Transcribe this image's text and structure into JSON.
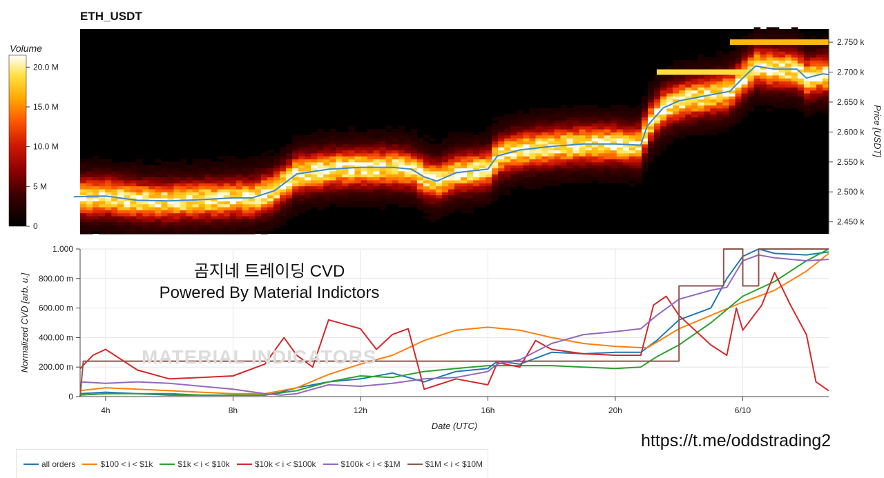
{
  "title": "ETH_USDT",
  "colorbar": {
    "label": "Volume",
    "ticks": [
      "20.0 M",
      "15.0 M",
      "10.0 M",
      "5 M",
      "0"
    ],
    "tick_values": [
      20,
      15,
      10,
      5,
      0
    ],
    "max": 21.5,
    "colormap": [
      "#000000",
      "#3a0000",
      "#8b0000",
      "#d11a00",
      "#ff5a00",
      "#ffaa00",
      "#ffe040",
      "#ffffff"
    ]
  },
  "heatmap": {
    "ylabel": "Price [USDT]",
    "yticks": [
      "2.750 k",
      "2.700 k",
      "2.650 k",
      "2.600 k",
      "2.550 k",
      "2.500 k",
      "2.450 k"
    ],
    "ytick_values": [
      2750,
      2700,
      2650,
      2600,
      2550,
      2500,
      2450
    ],
    "ylim": [
      2430,
      2772
    ],
    "price_line_color": "#3d8bc8",
    "price_path": [
      [
        3.0,
        2492
      ],
      [
        4.0,
        2493
      ],
      [
        5.0,
        2486
      ],
      [
        6.0,
        2485
      ],
      [
        7.0,
        2487
      ],
      [
        8.0,
        2490
      ],
      [
        8.6,
        2490
      ],
      [
        9.3,
        2502
      ],
      [
        10.0,
        2530
      ],
      [
        11.0,
        2538
      ],
      [
        12.0,
        2541
      ],
      [
        13.0,
        2541
      ],
      [
        13.6,
        2538
      ],
      [
        14.0,
        2525
      ],
      [
        14.4,
        2518
      ],
      [
        15.0,
        2532
      ],
      [
        16.0,
        2538
      ],
      [
        16.3,
        2560
      ],
      [
        17.0,
        2570
      ],
      [
        18.0,
        2576
      ],
      [
        19.0,
        2580
      ],
      [
        20.0,
        2580
      ],
      [
        20.8,
        2578
      ],
      [
        21.0,
        2610
      ],
      [
        21.5,
        2640
      ],
      [
        22.0,
        2652
      ],
      [
        23.0,
        2662
      ],
      [
        23.6,
        2668
      ],
      [
        24.0,
        2690
      ],
      [
        24.4,
        2710
      ],
      [
        25.0,
        2705
      ],
      [
        25.7,
        2705
      ],
      [
        26.0,
        2690
      ],
      [
        26.5,
        2697
      ],
      [
        26.7,
        2696
      ]
    ],
    "bright_bands": [
      {
        "price": 2700,
        "t_start": 21.3,
        "t_end": 24.3,
        "level": 0.85
      },
      {
        "price": 2750,
        "t_start": 23.6,
        "t_end": 26.7,
        "level": 0.75
      }
    ]
  },
  "watermark": "MATERIAL INDICATORS",
  "overlay": {
    "line1": "곰지네 트레이딩 CVD",
    "line2": "Powered By Material Indictors"
  },
  "url": "https://t.me/oddstrading2",
  "chart_data": {
    "type": "line",
    "xlabel": "Date (UTC)",
    "ylabel": "Normalized CVD [arb. u.]",
    "x_unit": "hours from 00:00 UTC (day 1); 24 = 6/10 00:00",
    "xlim": [
      3.2,
      26.7
    ],
    "ylim": [
      0,
      1.0
    ],
    "x_ticks": [
      {
        "label": "4h",
        "value": 4
      },
      {
        "label": "8h",
        "value": 8
      },
      {
        "label": "12h",
        "value": 12
      },
      {
        "label": "16h",
        "value": 16
      },
      {
        "label": "20h",
        "value": 20
      },
      {
        "label": "6/10",
        "value": 24
      }
    ],
    "y_ticks": [
      "1.000",
      "800.00 m",
      "600.00 m",
      "400.00 m",
      "200.00 m",
      "0"
    ],
    "y_tick_values": [
      1.0,
      0.8,
      0.6,
      0.4,
      0.2,
      0
    ],
    "grid": true,
    "legend_position": "bottom-left",
    "series": [
      {
        "name": "all orders",
        "color": "#1f77b4",
        "points": [
          [
            3.2,
            0.02
          ],
          [
            4,
            0.03
          ],
          [
            5,
            0.02
          ],
          [
            6,
            0.01
          ],
          [
            7,
            0.01
          ],
          [
            8,
            0.01
          ],
          [
            9,
            0.01
          ],
          [
            9.5,
            0.03
          ],
          [
            10,
            0.06
          ],
          [
            11,
            0.1
          ],
          [
            12,
            0.12
          ],
          [
            13,
            0.16
          ],
          [
            14,
            0.1
          ],
          [
            15,
            0.17
          ],
          [
            16,
            0.19
          ],
          [
            16.3,
            0.24
          ],
          [
            17,
            0.22
          ],
          [
            18,
            0.3
          ],
          [
            19,
            0.29
          ],
          [
            20,
            0.3
          ],
          [
            20.8,
            0.3
          ],
          [
            21.3,
            0.38
          ],
          [
            22,
            0.52
          ],
          [
            23,
            0.6
          ],
          [
            23.5,
            0.8
          ],
          [
            24,
            0.95
          ],
          [
            24.5,
            1.0
          ],
          [
            25,
            0.97
          ],
          [
            26,
            0.96
          ],
          [
            26.7,
            0.98
          ]
        ]
      },
      {
        "name": "$100 < i < $1k",
        "color": "#ff7f0e",
        "points": [
          [
            3.2,
            0.04
          ],
          [
            4,
            0.06
          ],
          [
            5,
            0.05
          ],
          [
            6,
            0.04
          ],
          [
            7,
            0.03
          ],
          [
            8,
            0.02
          ],
          [
            9,
            0.02
          ],
          [
            10,
            0.06
          ],
          [
            11,
            0.15
          ],
          [
            12,
            0.22
          ],
          [
            13,
            0.28
          ],
          [
            14,
            0.38
          ],
          [
            15,
            0.45
          ],
          [
            16,
            0.47
          ],
          [
            17,
            0.45
          ],
          [
            18,
            0.4
          ],
          [
            19,
            0.36
          ],
          [
            20,
            0.34
          ],
          [
            21,
            0.33
          ],
          [
            22,
            0.46
          ],
          [
            23,
            0.55
          ],
          [
            24,
            0.64
          ],
          [
            25,
            0.72
          ],
          [
            26,
            0.85
          ],
          [
            26.7,
            0.97
          ]
        ]
      },
      {
        "name": "$1k < i < $10k",
        "color": "#2ca02c",
        "points": [
          [
            3.2,
            0.01
          ],
          [
            4,
            0.02
          ],
          [
            5,
            0.02
          ],
          [
            6,
            0.02
          ],
          [
            7,
            0.01
          ],
          [
            8,
            0.01
          ],
          [
            9,
            0.01
          ],
          [
            10,
            0.04
          ],
          [
            11,
            0.1
          ],
          [
            12,
            0.14
          ],
          [
            13,
            0.13
          ],
          [
            14,
            0.17
          ],
          [
            15,
            0.19
          ],
          [
            16,
            0.21
          ],
          [
            17,
            0.21
          ],
          [
            18,
            0.21
          ],
          [
            19,
            0.2
          ],
          [
            20,
            0.19
          ],
          [
            20.8,
            0.2
          ],
          [
            21.3,
            0.27
          ],
          [
            22,
            0.35
          ],
          [
            23,
            0.5
          ],
          [
            24,
            0.68
          ],
          [
            25,
            0.78
          ],
          [
            26,
            0.92
          ],
          [
            26.7,
            1.0
          ]
        ]
      },
      {
        "name": "$10k < i < $100k",
        "color": "#d62728",
        "points": [
          [
            3.2,
            0.19
          ],
          [
            3.6,
            0.28
          ],
          [
            4,
            0.32
          ],
          [
            4.5,
            0.25
          ],
          [
            5,
            0.18
          ],
          [
            6,
            0.12
          ],
          [
            7,
            0.13
          ],
          [
            8,
            0.14
          ],
          [
            9,
            0.22
          ],
          [
            9.6,
            0.4
          ],
          [
            10,
            0.28
          ],
          [
            10.5,
            0.2
          ],
          [
            11,
            0.52
          ],
          [
            12,
            0.46
          ],
          [
            12.5,
            0.32
          ],
          [
            13,
            0.42
          ],
          [
            13.5,
            0.46
          ],
          [
            14,
            0.05
          ],
          [
            15,
            0.12
          ],
          [
            16,
            0.08
          ],
          [
            16.3,
            0.23
          ],
          [
            17,
            0.2
          ],
          [
            17.5,
            0.38
          ],
          [
            18,
            0.32
          ],
          [
            19,
            0.29
          ],
          [
            20,
            0.28
          ],
          [
            20.8,
            0.28
          ],
          [
            21.2,
            0.62
          ],
          [
            21.6,
            0.68
          ],
          [
            22,
            0.55
          ],
          [
            23,
            0.35
          ],
          [
            23.5,
            0.28
          ],
          [
            23.8,
            0.6
          ],
          [
            24,
            0.45
          ],
          [
            24.6,
            0.62
          ],
          [
            25,
            0.84
          ],
          [
            25.5,
            0.62
          ],
          [
            26,
            0.42
          ],
          [
            26.3,
            0.1
          ],
          [
            26.7,
            0.04
          ]
        ]
      },
      {
        "name": "$100k < i < $1M",
        "color": "#9467bd",
        "points": [
          [
            3.2,
            0.1
          ],
          [
            4,
            0.09
          ],
          [
            5,
            0.1
          ],
          [
            6,
            0.09
          ],
          [
            7,
            0.07
          ],
          [
            8,
            0.05
          ],
          [
            9,
            0.02
          ],
          [
            9.5,
            0.01
          ],
          [
            10,
            0.02
          ],
          [
            11,
            0.08
          ],
          [
            12,
            0.07
          ],
          [
            13,
            0.09
          ],
          [
            14,
            0.12
          ],
          [
            15,
            0.13
          ],
          [
            16,
            0.17
          ],
          [
            16.3,
            0.22
          ],
          [
            17,
            0.25
          ],
          [
            18,
            0.36
          ],
          [
            19,
            0.42
          ],
          [
            20,
            0.44
          ],
          [
            20.8,
            0.46
          ],
          [
            21.3,
            0.55
          ],
          [
            22,
            0.66
          ],
          [
            23,
            0.72
          ],
          [
            23.5,
            0.74
          ],
          [
            24,
            0.92
          ],
          [
            24.5,
            0.96
          ],
          [
            25,
            0.94
          ],
          [
            26,
            0.92
          ],
          [
            26.7,
            0.93
          ]
        ]
      },
      {
        "name": "$1M < i < $10M",
        "color": "#8c564b",
        "points": [
          [
            3.2,
            0.0
          ],
          [
            3.3,
            0.24
          ],
          [
            22.0,
            0.24
          ],
          [
            22.0,
            0.75
          ],
          [
            23.4,
            0.75
          ],
          [
            23.4,
            1.0
          ],
          [
            24.0,
            1.0
          ],
          [
            24.0,
            0.75
          ],
          [
            24.5,
            0.75
          ],
          [
            24.5,
            1.0
          ],
          [
            26.7,
            1.0
          ]
        ]
      }
    ]
  }
}
